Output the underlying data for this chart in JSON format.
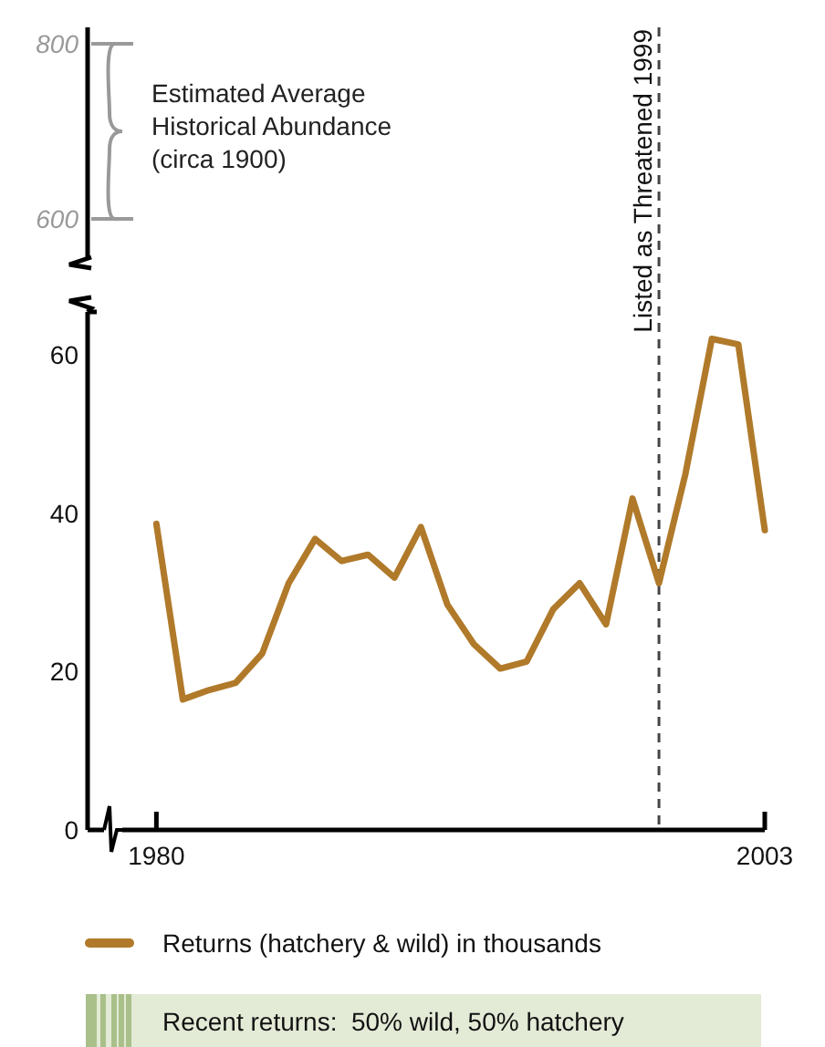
{
  "chart_data": [
    {
      "type": "other",
      "annotations": [
        "800",
        "Estimated Average Historical Abundance (circa 1900)",
        "600"
      ]
    },
    {
      "type": "line",
      "x": [
        1980,
        1981,
        1982,
        1983,
        1984,
        1985,
        1986,
        1987,
        1988,
        1989,
        1990,
        1991,
        1992,
        1993,
        1994,
        1995,
        1996,
        1997,
        1998,
        1999,
        2000,
        2001,
        2002,
        2003
      ],
      "series": [
        {
          "name": "Returns (hatchery & wild) in thousands",
          "color": "#b07a2a",
          "values": [
            38.7,
            16.5,
            17.7,
            18.6,
            22.3,
            31.2,
            36.8,
            34.0,
            34.8,
            31.9,
            38.3,
            28.5,
            23.5,
            20.4,
            21.3,
            27.9,
            31.2,
            26.0,
            41.9,
            31.2,
            45.0,
            62.1,
            61.4,
            37.9
          ]
        }
      ],
      "xlim": [
        1977.4,
        2003
      ],
      "xticks": [
        1980,
        2003
      ],
      "ylim": [
        0,
        65.5
      ],
      "yticks": [
        0,
        20,
        40,
        60
      ],
      "ref_lines": [
        {
          "axis": "x",
          "value": 1999,
          "label": "Listed as Threatened 1999",
          "color": "#444444",
          "line_style": "dashed"
        }
      ],
      "annotations": [
        "Recent returns:  50% wild, 50% hatchery"
      ],
      "legend": "bottom",
      "grid": false,
      "marker": "none",
      "line_style": "solid"
    }
  ]
}
